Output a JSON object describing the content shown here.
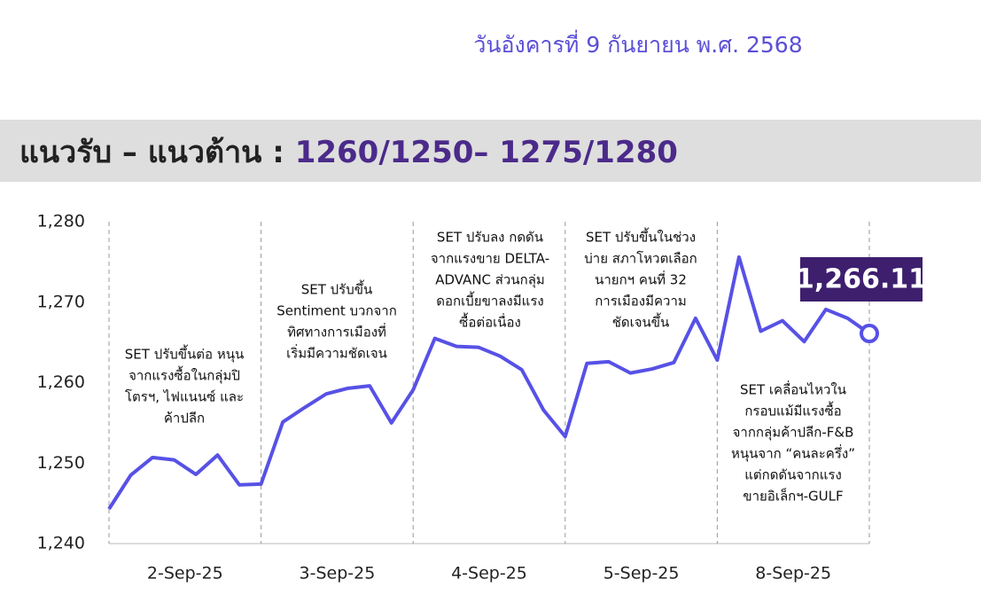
{
  "date_text": "วันอังคารที่ 9 กันยายน พ.ศ. 2568",
  "headline": {
    "label": "แนวรับ – แนวต้าน : ",
    "levels": "1260/1250– 1275/1280"
  },
  "chart_data": {
    "type": "line",
    "color": "#5751e6",
    "values": [
      1244.3,
      1248.5,
      1250.7,
      1250.4,
      1248.6,
      1251.0,
      1247.3,
      1247.4,
      1255.1,
      1256.9,
      1258.6,
      1259.3,
      1259.6,
      1255.0,
      1259.1,
      1265.5,
      1264.5,
      1264.4,
      1263.3,
      1261.6,
      1256.6,
      1253.3,
      1262.4,
      1262.6,
      1261.2,
      1261.7,
      1262.5,
      1268.0,
      1262.8,
      1275.6,
      1266.4,
      1267.7,
      1265.1,
      1269.1,
      1268.0,
      1266.11
    ],
    "last_label": "1,266.11",
    "ylim": [
      1240,
      1280
    ],
    "yticks": [
      {
        "value": 1240,
        "label": "1,240"
      },
      {
        "value": 1250,
        "label": "1,250"
      },
      {
        "value": 1260,
        "label": "1,260"
      },
      {
        "value": 1270,
        "label": "1,270"
      },
      {
        "value": 1280,
        "label": "1,280"
      }
    ],
    "sessions": [
      {
        "label": "2-Sep-25",
        "note": [
          "SET ปรับขึ้นต่อ หนุน",
          "จากแรงซื้อในกลุ่มปิ",
          "โตรฯ, ไฟแนนซ์ และ",
          "ค้าปลีก"
        ]
      },
      {
        "label": "3-Sep-25",
        "note": [
          "SET ปรับขึ้น",
          "Sentiment บวกจาก",
          "ทิศทางการเมืองที่",
          "เริ่มมีความชัดเจน"
        ]
      },
      {
        "label": "4-Sep-25",
        "note": [
          "SET ปรับลง กดดัน",
          "จากแรงขาย DELTA-",
          "ADVANC ส่วนกลุ่ม",
          "ดอกเบี้ยขาลงมีแรง",
          "ซื้อต่อเนื่อง"
        ]
      },
      {
        "label": "5-Sep-25",
        "note": [
          "SET ปรับขึ้นในช่วง",
          "บ่าย สภาโหวตเลือก",
          "นายกฯ คนที่ 32",
          "การเมืองมีความ",
          "ชัดเจนขึ้น"
        ]
      },
      {
        "label": "8-Sep-25",
        "note": [
          "SET เคลื่อนไหวใน",
          "กรอบแม้มีแรงซื้อ",
          "จากกลุ่มค้าปลีก-F&B",
          "หนุนจาก “คนละครึ่ง”",
          "แต่กดดันจากแรง",
          "ขายอิเล็กฯ-GULF"
        ]
      }
    ]
  }
}
